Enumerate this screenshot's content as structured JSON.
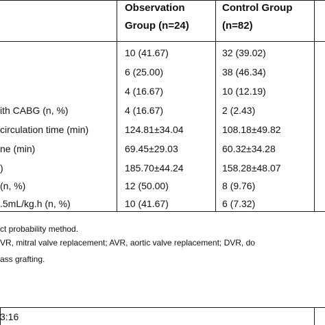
{
  "table": {
    "headers": {
      "observation": [
        "Observation",
        "Group (n=24)"
      ],
      "control": [
        "Control Group",
        "(n=82)"
      ]
    },
    "rows": [
      {
        "label": "",
        "obs": "10 (41.67)",
        "ctrl": "32 (39.02)"
      },
      {
        "label": "",
        "obs": "6 (25.00)",
        "ctrl": "38 (46.34)"
      },
      {
        "label": "",
        "obs": "4 (16.67)",
        "ctrl": "10 (12.19)"
      },
      {
        "label": "ith CABG (n, %)",
        "obs": "4 (16.67)",
        "ctrl": "2 (2.43)"
      },
      {
        "label": "circulation time (min)",
        "obs": "124.81±34.04",
        "ctrl": "108.18±49.82"
      },
      {
        "label": "ne (min)",
        "obs": "69.45±29.03",
        "ctrl": "60.32±34.28"
      },
      {
        "label": ")",
        "obs": "185.70±44.24",
        "ctrl": "158.28±48.07"
      },
      {
        "label": "(n, %)",
        "obs": "12 (50.00)",
        "ctrl": "8 (9.76)"
      },
      {
        "label": ".5mL/kg.h (n, %)",
        "obs": "10 (41.67)",
        "ctrl": "6 (7.32)"
      }
    ]
  },
  "notes": {
    "line1": "ct probability method.",
    "line2": "VR, mitral valve replacement; AVR, aortic valve replacement; DVR, do",
    "line3": "ass grafting."
  },
  "footer": {
    "time": "3:16"
  }
}
